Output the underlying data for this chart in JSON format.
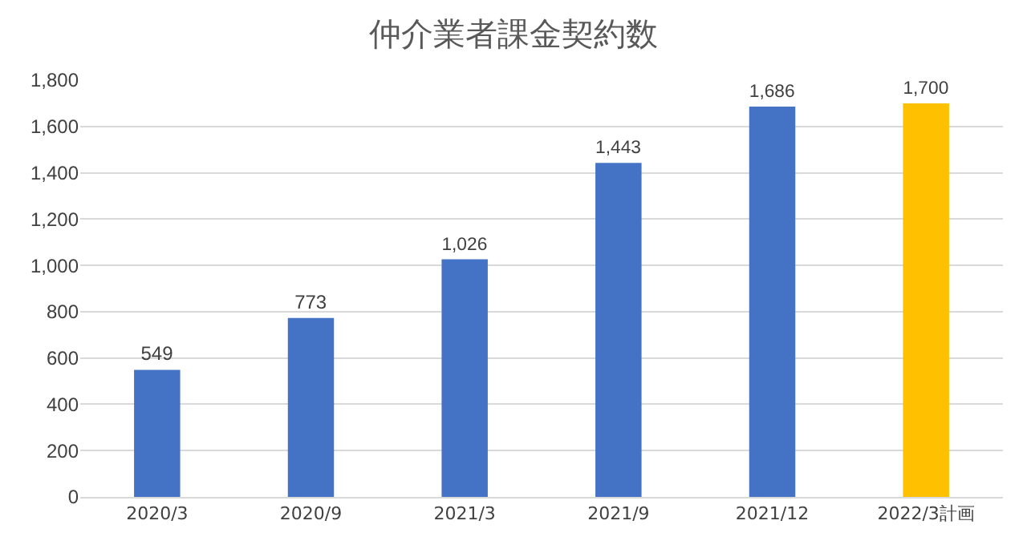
{
  "chart_data": {
    "type": "bar",
    "title": "仲介業者課金契約数",
    "categories": [
      "2020/3",
      "2020/9",
      "2021/3",
      "2021/9",
      "2021/12",
      "2022/3計画"
    ],
    "values": [
      549,
      773,
      1026,
      1443,
      1686,
      1700
    ],
    "colors": [
      "#4472c4",
      "#4472c4",
      "#4472c4",
      "#4472c4",
      "#4472c4",
      "#ffc000"
    ],
    "value_labels": [
      "549",
      "773",
      "1,026",
      "1,443",
      "1,686",
      "1,700"
    ],
    "ylim": [
      0,
      1800
    ],
    "yticks": [
      {
        "value": 0,
        "label": "0"
      },
      {
        "value": 200,
        "label": "200"
      },
      {
        "value": 400,
        "label": "400"
      },
      {
        "value": 600,
        "label": "600"
      },
      {
        "value": 800,
        "label": "800"
      },
      {
        "value": 1000,
        "label": "1,000"
      },
      {
        "value": 1200,
        "label": "1,200"
      },
      {
        "value": 1400,
        "label": "1,400"
      },
      {
        "value": 1600,
        "label": "1,600"
      },
      {
        "value": 1800,
        "label": "1,800"
      }
    ],
    "grid": "y",
    "legend": false
  }
}
